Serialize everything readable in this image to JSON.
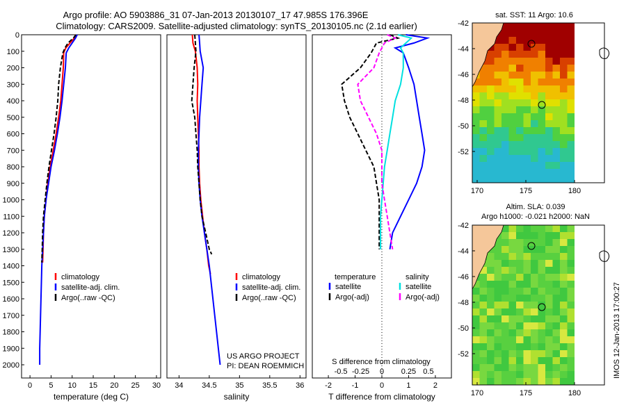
{
  "title_line1": "Argo profile: AO 5903886_31 07-Jan-2013 20130107_17 47.985S 176.396E",
  "title_line2": "Climatology: CARS2009. Satellite-adjusted climatology: synTS_20130105.nc (2.1d earlier)",
  "footer_project": "US ARGO PROJECT",
  "footer_pi": "PI: DEAN ROEMMICH",
  "side_stamp": "IMOS 12-Jan-2013 17:00:27",
  "colors": {
    "climatology": "#ff0000",
    "satellite": "#0000ff",
    "argo": "#000000",
    "sal_satellite": "#00e0e0",
    "sal_argo": "#ff00ff",
    "land": "#f5c79a"
  },
  "chart_data": [
    {
      "type": "line",
      "id": "temperature",
      "xlabel": "temperature (deg C)",
      "ylabel": "",
      "xlim": [
        -2,
        31
      ],
      "ylim": [
        2080,
        0
      ],
      "xticks": [
        0,
        5,
        10,
        15,
        20,
        25,
        30
      ],
      "yticks": [
        0,
        100,
        200,
        300,
        400,
        500,
        600,
        700,
        800,
        900,
        1000,
        1100,
        1200,
        1300,
        1400,
        1500,
        1600,
        1700,
        1800,
        1900,
        2000
      ],
      "legend": {
        "placement": "lower-middle",
        "entries": [
          {
            "label": "climatology",
            "color": "#ff0000"
          },
          {
            "label": "satellite-adj. clim.",
            "color": "#0000ff"
          },
          {
            "label": "Argo(..raw -QC)",
            "color": "#000000"
          }
        ]
      },
      "series": [
        {
          "name": "climatology",
          "color": "#ff0000",
          "dash": "",
          "points": [
            [
              10.8,
              0
            ],
            [
              10.5,
              20
            ],
            [
              9.5,
              50
            ],
            [
              8.5,
              80
            ],
            [
              8.0,
              110
            ],
            [
              7.9,
              200
            ],
            [
              7.6,
              300
            ],
            [
              7.3,
              400
            ],
            [
              6.8,
              500
            ],
            [
              6.2,
              600
            ],
            [
              5.5,
              700
            ],
            [
              4.8,
              800
            ],
            [
              4.2,
              900
            ],
            [
              3.8,
              1000
            ],
            [
              3.4,
              1100
            ],
            [
              3.2,
              1200
            ],
            [
              3.1,
              1300
            ],
            [
              3.0,
              1380
            ]
          ]
        },
        {
          "name": "satellite-adj. clim.",
          "color": "#0000ff",
          "dash": "",
          "points": [
            [
              11.2,
              0
            ],
            [
              10.8,
              20
            ],
            [
              10.0,
              50
            ],
            [
              9.2,
              80
            ],
            [
              8.6,
              110
            ],
            [
              8.4,
              200
            ],
            [
              8.0,
              300
            ],
            [
              7.6,
              400
            ],
            [
              7.1,
              500
            ],
            [
              6.5,
              600
            ],
            [
              5.8,
              700
            ],
            [
              5.0,
              800
            ],
            [
              4.4,
              900
            ],
            [
              3.8,
              1000
            ],
            [
              3.4,
              1100
            ],
            [
              3.2,
              1200
            ],
            [
              3.0,
              1300
            ],
            [
              2.8,
              1400
            ],
            [
              2.7,
              1500
            ],
            [
              2.6,
              1600
            ],
            [
              2.5,
              1700
            ],
            [
              2.4,
              1800
            ],
            [
              2.3,
              1900
            ],
            [
              2.3,
              2000
            ]
          ]
        },
        {
          "name": "Argo(..raw -QC)",
          "color": "#000000",
          "dash": "6,3",
          "points": [
            [
              10.9,
              0
            ],
            [
              10.3,
              20
            ],
            [
              9.0,
              50
            ],
            [
              8.3,
              80
            ],
            [
              7.8,
              110
            ],
            [
              7.2,
              200
            ],
            [
              6.8,
              300
            ],
            [
              6.6,
              400
            ],
            [
              6.2,
              500
            ],
            [
              5.7,
              600
            ],
            [
              5.1,
              700
            ],
            [
              4.5,
              800
            ],
            [
              4.0,
              900
            ],
            [
              3.6,
              1000
            ],
            [
              3.2,
              1100
            ],
            [
              3.0,
              1200
            ],
            [
              2.9,
              1300
            ],
            [
              2.8,
              1380
            ]
          ]
        }
      ]
    },
    {
      "type": "line",
      "id": "salinity",
      "xlabel": "salinity",
      "ylabel": "",
      "xlim": [
        33.8,
        36.1
      ],
      "ylim": [
        2080,
        0
      ],
      "xticks": [
        34,
        34.5,
        35,
        35.5,
        36
      ],
      "legend": {
        "placement": "lower-middle",
        "entries": [
          {
            "label": "climatology",
            "color": "#ff0000"
          },
          {
            "label": "satellite-adj. clim.",
            "color": "#0000ff"
          },
          {
            "label": "Argo(..raw -QC)",
            "color": "#000000"
          }
        ]
      },
      "series": [
        {
          "name": "climatology",
          "color": "#ff0000",
          "dash": "",
          "points": [
            [
              34.22,
              0
            ],
            [
              34.23,
              50
            ],
            [
              34.27,
              100
            ],
            [
              34.3,
              200
            ],
            [
              34.31,
              300
            ],
            [
              34.3,
              400
            ],
            [
              34.31,
              500
            ],
            [
              34.32,
              600
            ],
            [
              34.33,
              700
            ],
            [
              34.33,
              800
            ],
            [
              34.34,
              900
            ],
            [
              34.36,
              1000
            ],
            [
              34.39,
              1100
            ],
            [
              34.42,
              1200
            ],
            [
              34.46,
              1300
            ],
            [
              34.49,
              1400
            ],
            [
              34.52,
              1450
            ]
          ]
        },
        {
          "name": "satellite-adj. clim.",
          "color": "#0000ff",
          "dash": "",
          "points": [
            [
              34.33,
              0
            ],
            [
              34.34,
              50
            ],
            [
              34.35,
              100
            ],
            [
              34.4,
              200
            ],
            [
              34.38,
              300
            ],
            [
              34.36,
              400
            ],
            [
              34.34,
              500
            ],
            [
              34.33,
              600
            ],
            [
              34.32,
              700
            ],
            [
              34.32,
              800
            ],
            [
              34.33,
              900
            ],
            [
              34.35,
              1000
            ],
            [
              34.38,
              1100
            ],
            [
              34.42,
              1200
            ],
            [
              34.46,
              1300
            ],
            [
              34.5,
              1400
            ],
            [
              34.53,
              1500
            ],
            [
              34.56,
              1600
            ],
            [
              34.59,
              1700
            ],
            [
              34.62,
              1800
            ],
            [
              34.65,
              1900
            ],
            [
              34.68,
              2000
            ]
          ]
        },
        {
          "name": "Argo(..raw -QC)",
          "color": "#000000",
          "dash": "6,3",
          "points": [
            [
              34.26,
              0
            ],
            [
              34.27,
              50
            ],
            [
              34.28,
              100
            ],
            [
              34.25,
              200
            ],
            [
              34.23,
              300
            ],
            [
              34.21,
              400
            ],
            [
              34.26,
              500
            ],
            [
              34.28,
              600
            ],
            [
              34.3,
              700
            ],
            [
              34.31,
              800
            ],
            [
              34.33,
              900
            ],
            [
              34.35,
              1000
            ],
            [
              34.38,
              1100
            ],
            [
              34.44,
              1200
            ],
            [
              34.5,
              1300
            ],
            [
              34.54,
              1330
            ]
          ]
        }
      ]
    },
    {
      "type": "line",
      "id": "difference",
      "xlabel": "T difference from climatology",
      "xlabel_top": "S difference from climatology",
      "xlim": [
        -2.6,
        2.6
      ],
      "ylim": [
        2080,
        0
      ],
      "xticks_T": [
        -2,
        -1,
        0,
        1,
        2
      ],
      "xticks_S_labels": [
        "-0.5",
        "-0.25",
        "0",
        "0.25",
        "0.5"
      ],
      "legend": {
        "placement": "lower-middle",
        "headers": [
          "temperature",
          "salinity"
        ],
        "entries": [
          {
            "label": "satellite",
            "color": "#0000ff",
            "column": 0
          },
          {
            "label": "Argo(-adj)",
            "color": "#000000",
            "column": 0
          },
          {
            "label": "satellite",
            "color": "#00e0e0",
            "column": 1
          },
          {
            "label": "Argo(-adj)",
            "color": "#ff00ff",
            "column": 1
          }
        ]
      },
      "series": [
        {
          "name": "temperature satellite",
          "color": "#0000ff",
          "dash": "",
          "points": [
            [
              0.9,
              0
            ],
            [
              1.7,
              20
            ],
            [
              1.2,
              50
            ],
            [
              0.5,
              80
            ],
            [
              0.8,
              110
            ],
            [
              1.0,
              200
            ],
            [
              1.2,
              300
            ],
            [
              1.3,
              400
            ],
            [
              1.4,
              500
            ],
            [
              1.5,
              600
            ],
            [
              1.6,
              700
            ],
            [
              1.5,
              800
            ],
            [
              1.3,
              900
            ],
            [
              1.0,
              1000
            ],
            [
              0.7,
              1100
            ],
            [
              0.4,
              1200
            ],
            [
              0.3,
              1300
            ]
          ]
        },
        {
          "name": "temperature Argo(-adj)",
          "color": "#000000",
          "dash": "6,3",
          "points": [
            [
              0.3,
              0
            ],
            [
              0.6,
              20
            ],
            [
              -0.2,
              50
            ],
            [
              -0.4,
              110
            ],
            [
              -0.8,
              200
            ],
            [
              -1.5,
              300
            ],
            [
              -1.4,
              400
            ],
            [
              -1.2,
              500
            ],
            [
              -0.9,
              600
            ],
            [
              -0.6,
              700
            ],
            [
              -0.3,
              800
            ],
            [
              -0.2,
              900
            ],
            [
              -0.1,
              1000
            ],
            [
              -0.1,
              1100
            ],
            [
              -0.1,
              1200
            ],
            [
              -0.1,
              1300
            ]
          ]
        },
        {
          "name": "salinity satellite",
          "color": "#00e0e0",
          "dash": "",
          "points": [
            [
              0.6,
              0
            ],
            [
              1.1,
              20
            ],
            [
              0.9,
              50
            ],
            [
              0.7,
              80
            ],
            [
              0.8,
              110
            ],
            [
              0.8,
              200
            ],
            [
              0.7,
              300
            ],
            [
              0.5,
              400
            ],
            [
              0.4,
              500
            ],
            [
              0.3,
              600
            ],
            [
              0.2,
              700
            ],
            [
              0.1,
              800
            ],
            [
              0.05,
              900
            ],
            [
              0.0,
              1000
            ],
            [
              -0.05,
              1100
            ],
            [
              -0.05,
              1200
            ],
            [
              -0.05,
              1300
            ]
          ]
        },
        {
          "name": "salinity Argo(-adj)",
          "color": "#ff00ff",
          "dash": "6,3",
          "points": [
            [
              0.2,
              0
            ],
            [
              0.5,
              20
            ],
            [
              0.1,
              50
            ],
            [
              -0.1,
              110
            ],
            [
              -0.3,
              200
            ],
            [
              -0.9,
              300
            ],
            [
              -0.8,
              400
            ],
            [
              -0.5,
              500
            ],
            [
              -0.2,
              600
            ],
            [
              0.0,
              700
            ],
            [
              0.0,
              800
            ],
            [
              0.0,
              900
            ],
            [
              0.1,
              1000
            ],
            [
              0.2,
              1100
            ],
            [
              0.3,
              1200
            ],
            [
              0.4,
              1300
            ]
          ]
        }
      ]
    }
  ],
  "maps": [
    {
      "id": "sst-map",
      "title": "sat. SST: 11 Argo: 10.6",
      "title_lines": [],
      "lat_ticks": [
        "-42",
        "-44",
        "-46",
        "-48",
        "-50",
        "-52"
      ],
      "lon_ticks": [
        "170",
        "175",
        "180"
      ],
      "field": "sst"
    },
    {
      "id": "sla-map",
      "title": "",
      "title_lines": [
        "Altim. SLA: 0.039",
        "Argo h1000: -0.021 h2000: NaN"
      ],
      "lat_ticks": [
        "-42",
        "-44",
        "-46",
        "-48",
        "-50",
        "-52"
      ],
      "lon_ticks": [
        "170",
        "175",
        "180"
      ],
      "field": "sla"
    }
  ]
}
